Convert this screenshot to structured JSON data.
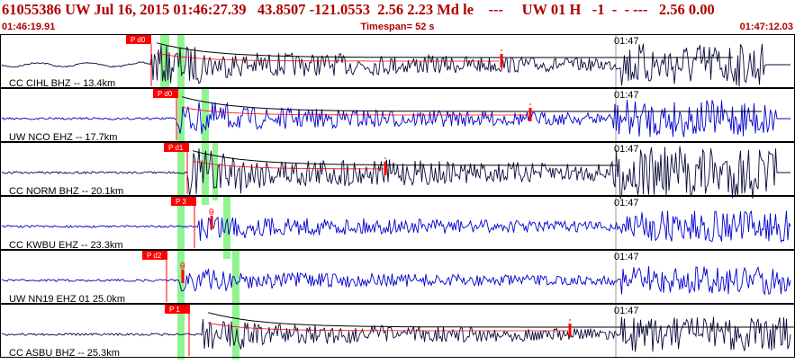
{
  "header": {
    "event_line": "61055386 UW Jul 16, 2015 01:46:27.39   43.8507 -121.0553  2.56 2.23 Md le    ---     UW 01 H   -1  -  - ---   2.56 0.00",
    "start_time": "01:46:19.91",
    "timespan": "Timespan=  52 s",
    "end_time": "01:47:12.03"
  },
  "colors": {
    "header_text": "#b00000",
    "trace_dark": "#0a0a3c",
    "trace_blue": "#0000d0",
    "pick_box": "#ff0000",
    "phase_band": "#7cf27c",
    "coda_curve": "#000000",
    "coda_red": "#ff0000",
    "panel_border": "#000000"
  },
  "time_marker_label": "01:47",
  "panels": [
    {
      "label": "CC CIHL BHZ -- 13.4km",
      "color": "dark",
      "pick_label": "P d0",
      "pick_text": "",
      "pick_box_x": 140,
      "pick_line_x": 168,
      "s_x": 557,
      "onset": 168,
      "pre_amp": 0.28,
      "amp": 0.7,
      "tail_start": 690,
      "tail_end": 850,
      "coda": true
    },
    {
      "label": "UW NCO EHZ -- 17.7km",
      "color": "blue",
      "pick_label": "P d0",
      "pick_text": "",
      "pick_box_x": 170,
      "pick_line_x": 196,
      "s_x": 589,
      "onset": 196,
      "pre_amp": 0.04,
      "amp": 0.6,
      "tail_start": 680,
      "tail_end": 862,
      "coda": true
    },
    {
      "label": "CC NORM BHZ -- 20.1km",
      "color": "dark",
      "pick_label": "P d1",
      "pick_text": "",
      "pick_box_x": 182,
      "pick_line_x": 208,
      "s_x": 428,
      "onset": 208,
      "pre_amp": 0.04,
      "amp": 0.85,
      "tail_start": 680,
      "tail_end": 862,
      "coda": true
    },
    {
      "label": "CC KWBU EHZ -- 23.3km",
      "color": "blue",
      "pick_label": "P 3",
      "pick_text": "0",
      "pick_box_x": 190,
      "pick_line_x": 216,
      "s_x": 235,
      "onset": 220,
      "pre_amp": 0.05,
      "amp": 0.5,
      "tail_start": 690,
      "tail_end": 878,
      "coda": false
    },
    {
      "label": "UW NN19 EHZ 01 25.0km",
      "color": "blue",
      "pick_label": "P d2",
      "pick_text": "0",
      "pick_box_x": 158,
      "pick_line_x": 185,
      "s_x": 203,
      "onset": 200,
      "pre_amp": 0.05,
      "amp": 0.45,
      "tail_start": 690,
      "tail_end": 878,
      "coda": false
    },
    {
      "label": "CC ASBU BHZ -- 25.3km",
      "color": "dark",
      "pick_label": "P 1",
      "pick_text": "",
      "pick_box_x": 183,
      "pick_line_x": 210,
      "s_x": 633,
      "onset": 225,
      "pre_amp": 0.03,
      "amp": 0.55,
      "tail_start": 690,
      "tail_end": 878,
      "coda": true
    }
  ]
}
